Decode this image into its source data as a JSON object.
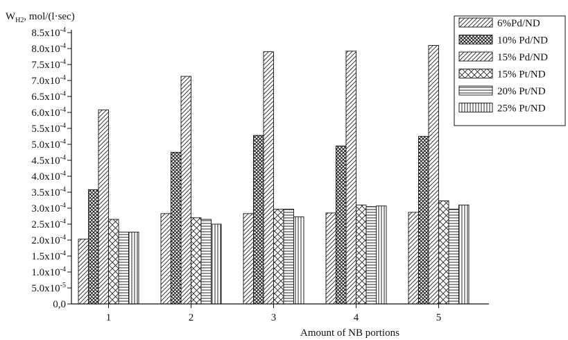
{
  "chart_data": {
    "type": "bar",
    "title": "",
    "ylabel_main": "W",
    "ylabel_sub": "H2",
    "ylabel_rest": ", mol/(l·sec)",
    "xlabel": "Amount of NB portions",
    "categories": [
      "1",
      "2",
      "3",
      "4",
      "5"
    ],
    "ylim": [
      0,
      0.00085
    ],
    "yticks": [
      0,
      5e-05,
      0.0001,
      0.00015,
      0.0002,
      0.00025,
      0.0003,
      0.00035,
      0.0004,
      0.00045,
      0.0005,
      0.00055,
      0.0006,
      0.00065,
      0.0007,
      0.00075,
      0.0008,
      0.00085
    ],
    "ytick_labels": [
      {
        "mant": "0,0",
        "exp": ""
      },
      {
        "mant": "5.0x10",
        "exp": "-5"
      },
      {
        "mant": "1.0x10",
        "exp": "-4"
      },
      {
        "mant": "1.5x10",
        "exp": "-4"
      },
      {
        "mant": "2.0x10",
        "exp": "-4"
      },
      {
        "mant": "2.5x10",
        "exp": "-4"
      },
      {
        "mant": "3.0x10",
        "exp": "-4"
      },
      {
        "mant": "3.5x10",
        "exp": "-4"
      },
      {
        "mant": "4.0x10",
        "exp": "-4"
      },
      {
        "mant": "4.5x10",
        "exp": "-4"
      },
      {
        "mant": "5.0x10",
        "exp": "-4"
      },
      {
        "mant": "5.5x10",
        "exp": "-4"
      },
      {
        "mant": "6.0x10",
        "exp": "-4"
      },
      {
        "mant": "6.5x10",
        "exp": "-4"
      },
      {
        "mant": "7.0x10",
        "exp": "-4"
      },
      {
        "mant": "7.5x10",
        "exp": "-4"
      },
      {
        "mant": "8.0x10",
        "exp": "-4"
      },
      {
        "mant": "8.5x10",
        "exp": "-4"
      }
    ],
    "legend_position": "top-right",
    "series": [
      {
        "name": "6%Pd/ND",
        "pattern": "diag-light",
        "values": [
          0.000203,
          0.000283,
          0.000283,
          0.000285,
          0.000287
        ]
      },
      {
        "name": "10% Pd/ND",
        "pattern": "cross-dense",
        "values": [
          0.000358,
          0.000475,
          0.000528,
          0.000495,
          0.000525
        ]
      },
      {
        "name": "15% Pd/ND",
        "pattern": "diag-light",
        "values": [
          0.000608,
          0.000713,
          0.00079,
          0.000792,
          0.00081
        ]
      },
      {
        "name": "15% Pt/ND",
        "pattern": "cross-open",
        "values": [
          0.000265,
          0.00027,
          0.000297,
          0.00031,
          0.000323
        ]
      },
      {
        "name": "20% Pt/ND",
        "pattern": "horizontal",
        "values": [
          0.000225,
          0.000265,
          0.000297,
          0.000305,
          0.000297
        ]
      },
      {
        "name": "25% Pt/ND",
        "pattern": "vertical",
        "values": [
          0.000225,
          0.00025,
          0.000273,
          0.000307,
          0.00031
        ]
      }
    ]
  }
}
